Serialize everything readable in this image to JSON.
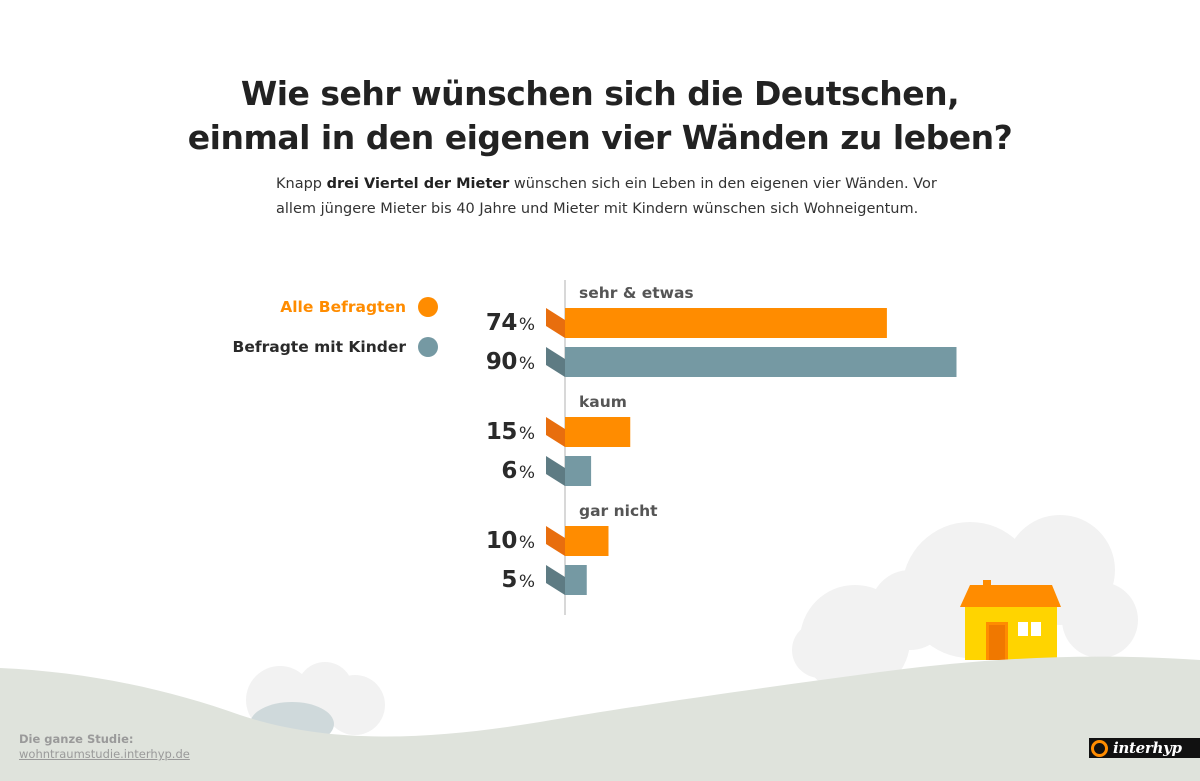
{
  "title": {
    "line1": "Wie sehr wünschen sich die Deutschen,",
    "line2": "einmal in den eigenen vier Wänden zu leben?"
  },
  "intro": {
    "pre": "Knapp ",
    "bold": "drei Viertel der Mieter",
    "post": " wünschen sich ein Leben in den eigenen vier Wänden. Vor allem jüngere Mieter bis 40 Jahre und Mieter mit Kindern wünschen sich Wohneigentum."
  },
  "legend": {
    "all": "Alle Befragten",
    "kids": "Befragte mit Kinder"
  },
  "colors": {
    "all": "#ff8c00",
    "all_dark": "#e86e0e",
    "kids": "#7599a3",
    "kids_dark": "#5e7b83",
    "ground": "#dfe3dc",
    "cloud": "#f2f2f2",
    "house_wall": "#ffd400",
    "house_roof": "#ff8c00"
  },
  "chart_data": {
    "type": "bar",
    "orientation": "horizontal",
    "unit": "%",
    "categories": [
      "sehr & etwas",
      "kaum",
      "gar nicht"
    ],
    "series": [
      {
        "name": "Alle Befragten",
        "values": [
          74,
          15,
          10
        ]
      },
      {
        "name": "Befragte mit Kinder",
        "values": [
          90,
          6,
          5
        ]
      }
    ],
    "xlim": [
      0,
      100
    ]
  },
  "footer": {
    "label": "Die ganze Studie:",
    "link": "wohntraumstudie.interhyp.de"
  },
  "logo": {
    "text": "interhyp"
  }
}
